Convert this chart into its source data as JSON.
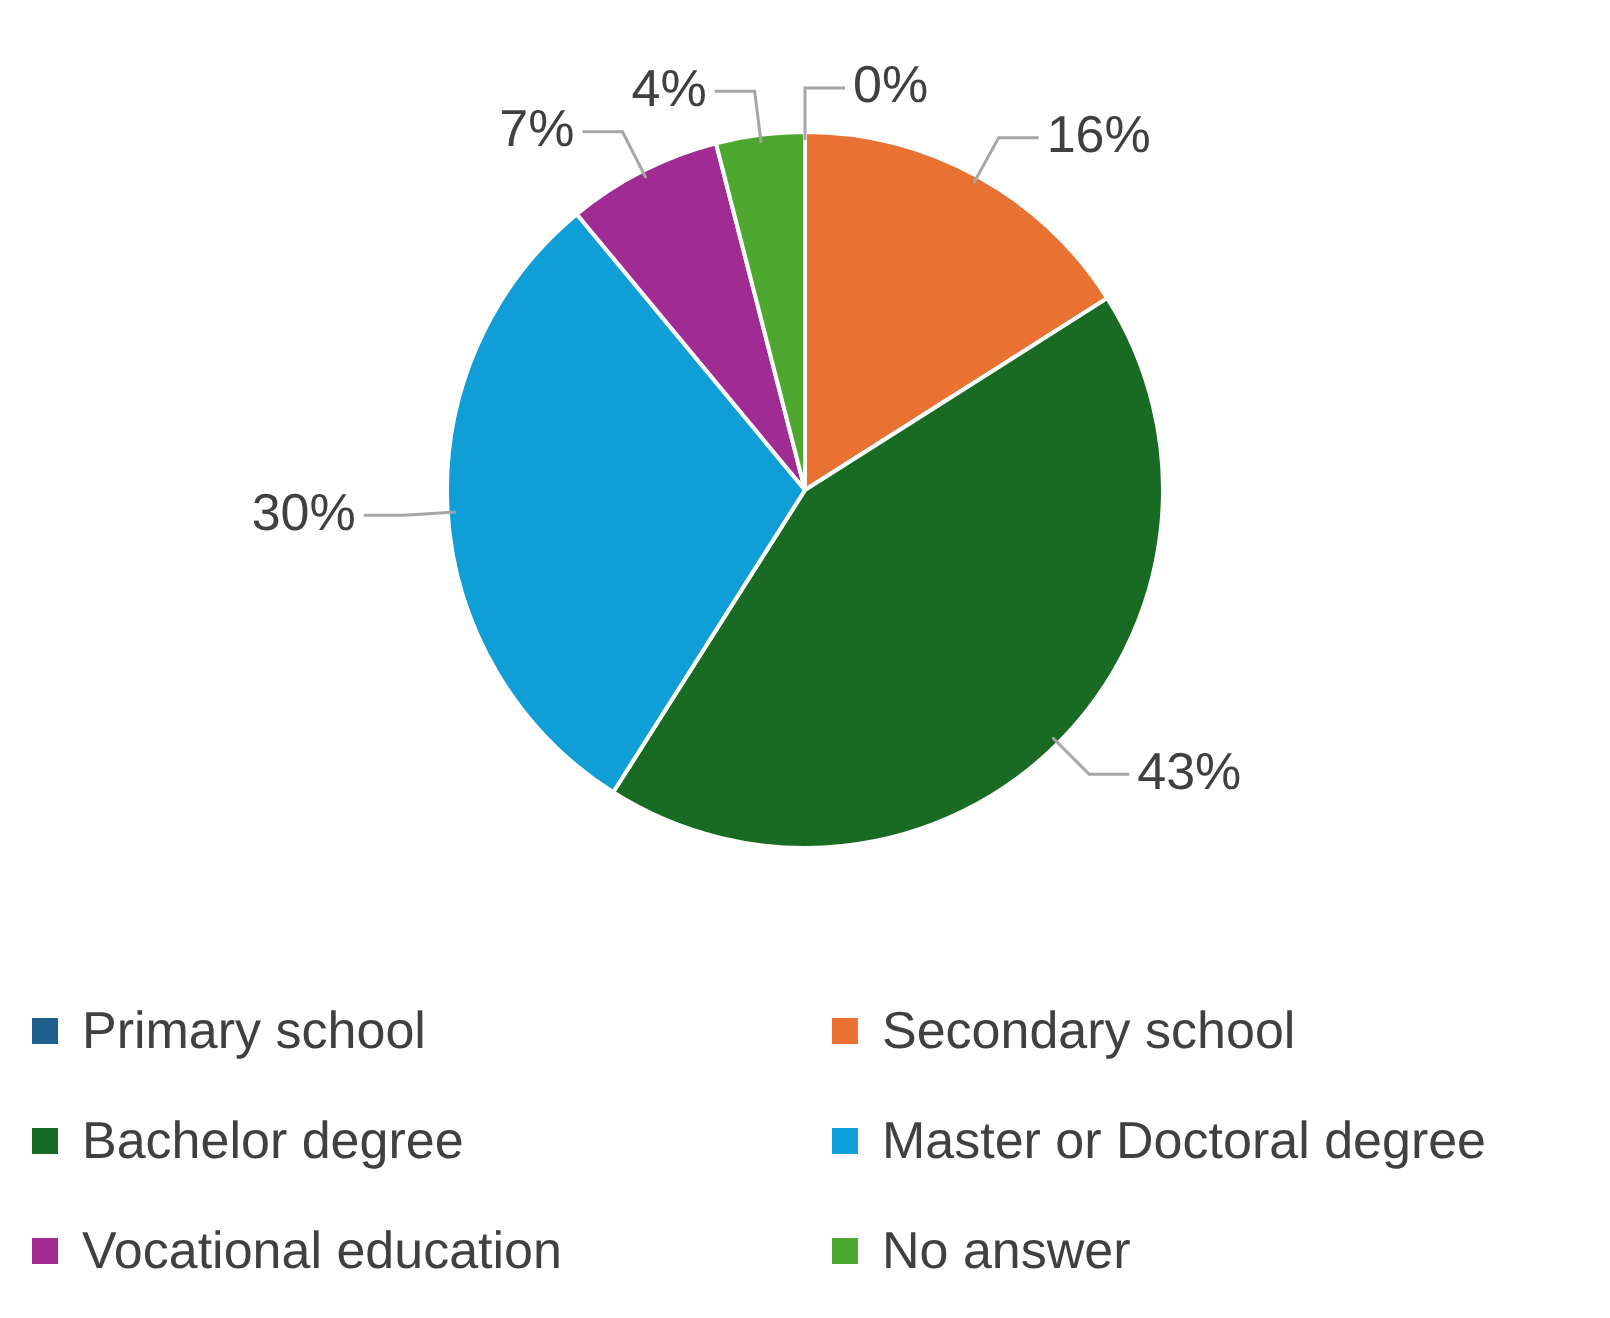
{
  "chart_data": {
    "type": "pie",
    "categories": [
      "Primary school",
      "Secondary school",
      "Bachelor degree",
      "Master or Doctoral degree",
      "Vocational education",
      "No answer"
    ],
    "values": [
      0,
      16,
      43,
      30,
      7,
      4
    ],
    "value_labels": [
      "0%",
      "16%",
      "43%",
      "30%",
      "7%",
      "4%"
    ],
    "colors": [
      "#1f5f8b",
      "#e97132",
      "#196b24",
      "#0f9ed5",
      "#a02b93",
      "#4ea72e"
    ],
    "legend": "bottom"
  }
}
